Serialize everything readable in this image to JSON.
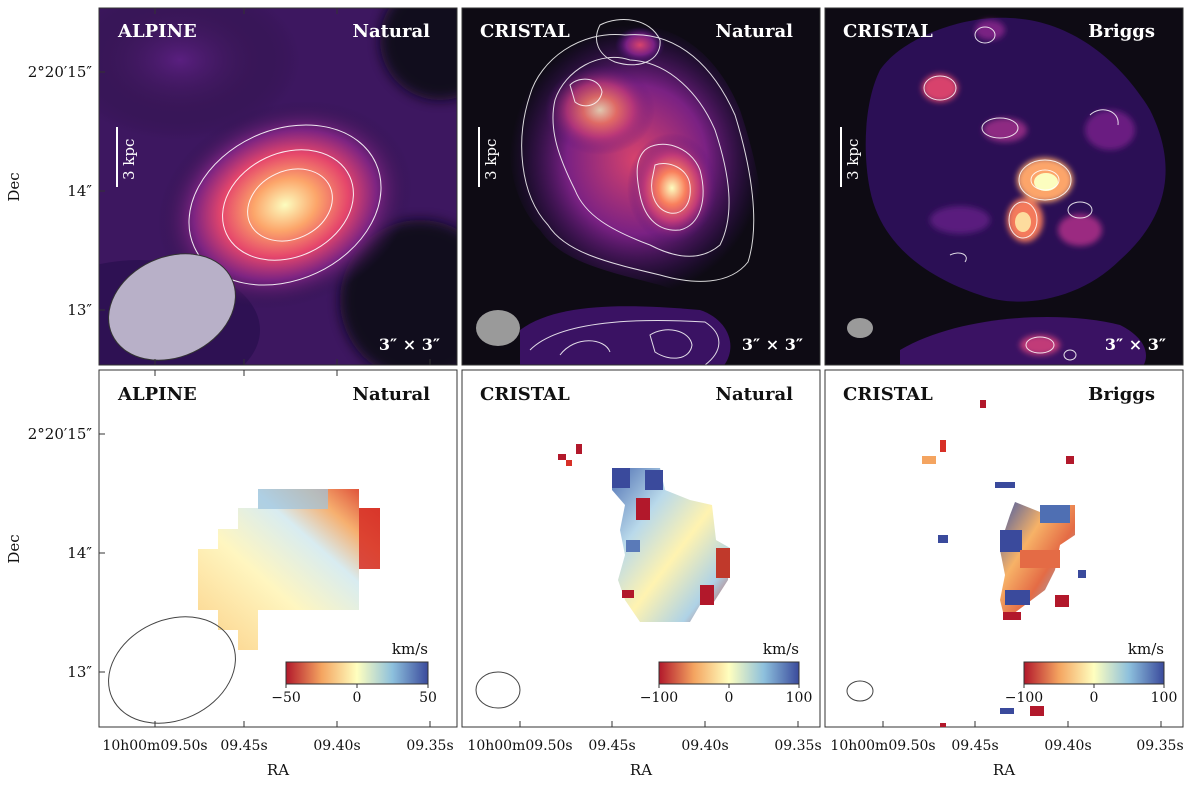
{
  "axes": {
    "y_label": "Dec",
    "x_label": "RA",
    "y_ticks": [
      "2°20′15″",
      "14″",
      "13″"
    ],
    "x_ticks": [
      "10h00m09.50s",
      "09.45s",
      "09.40s",
      "09.35s"
    ]
  },
  "panels": [
    {
      "id": "top-alpine",
      "row": "intensity",
      "survey": "ALPINE",
      "weighting": "Natural",
      "scale_label": "3 kpc",
      "size_label": "3″ × 3″"
    },
    {
      "id": "top-cristal-natural",
      "row": "intensity",
      "survey": "CRISTAL",
      "weighting": "Natural",
      "scale_label": "3 kpc",
      "size_label": "3″ × 3″"
    },
    {
      "id": "top-cristal-briggs",
      "row": "intensity",
      "survey": "CRISTAL",
      "weighting": "Briggs",
      "scale_label": "3 kpc",
      "size_label": "3″ × 3″"
    },
    {
      "id": "bot-alpine",
      "row": "velocity",
      "survey": "ALPINE",
      "weighting": "Natural",
      "colorbar": {
        "unit": "km/s",
        "min": -50,
        "max": 50,
        "ticks": [
          "−50",
          "0",
          "50"
        ]
      }
    },
    {
      "id": "bot-cristal-natural",
      "row": "velocity",
      "survey": "CRISTAL",
      "weighting": "Natural",
      "colorbar": {
        "unit": "km/s",
        "min": -100,
        "max": 100,
        "ticks": [
          "−100",
          "0",
          "100"
        ]
      }
    },
    {
      "id": "bot-cristal-briggs",
      "row": "velocity",
      "survey": "CRISTAL",
      "weighting": "Briggs",
      "colorbar": {
        "unit": "km/s",
        "min": -100,
        "max": 100,
        "ticks": [
          "−100",
          "0",
          "100"
        ]
      }
    }
  ],
  "colors": {
    "intensity_bg": "#0e0b14",
    "contour": "#ffffff",
    "velocity_neg": "#b2182b",
    "velocity_mid": "#ffffbf",
    "velocity_pos": "#3a4a9c"
  }
}
